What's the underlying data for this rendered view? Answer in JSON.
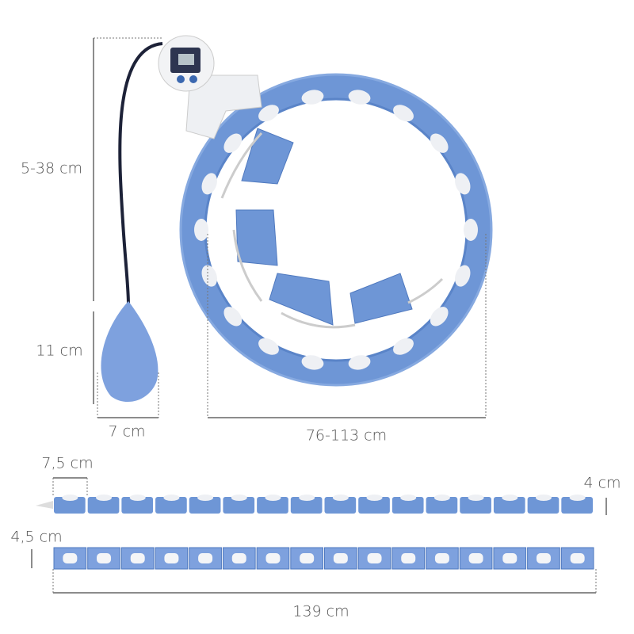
{
  "labels": {
    "cord_length": "5-38 cm",
    "ball_height": "11 cm",
    "ball_width": "7 cm",
    "hoop_diameter": "76-113 cm",
    "segment_width": "7,5 cm",
    "segment_height": "4 cm",
    "segment_depth": "4,5 cm",
    "total_length": "139 cm"
  }
}
